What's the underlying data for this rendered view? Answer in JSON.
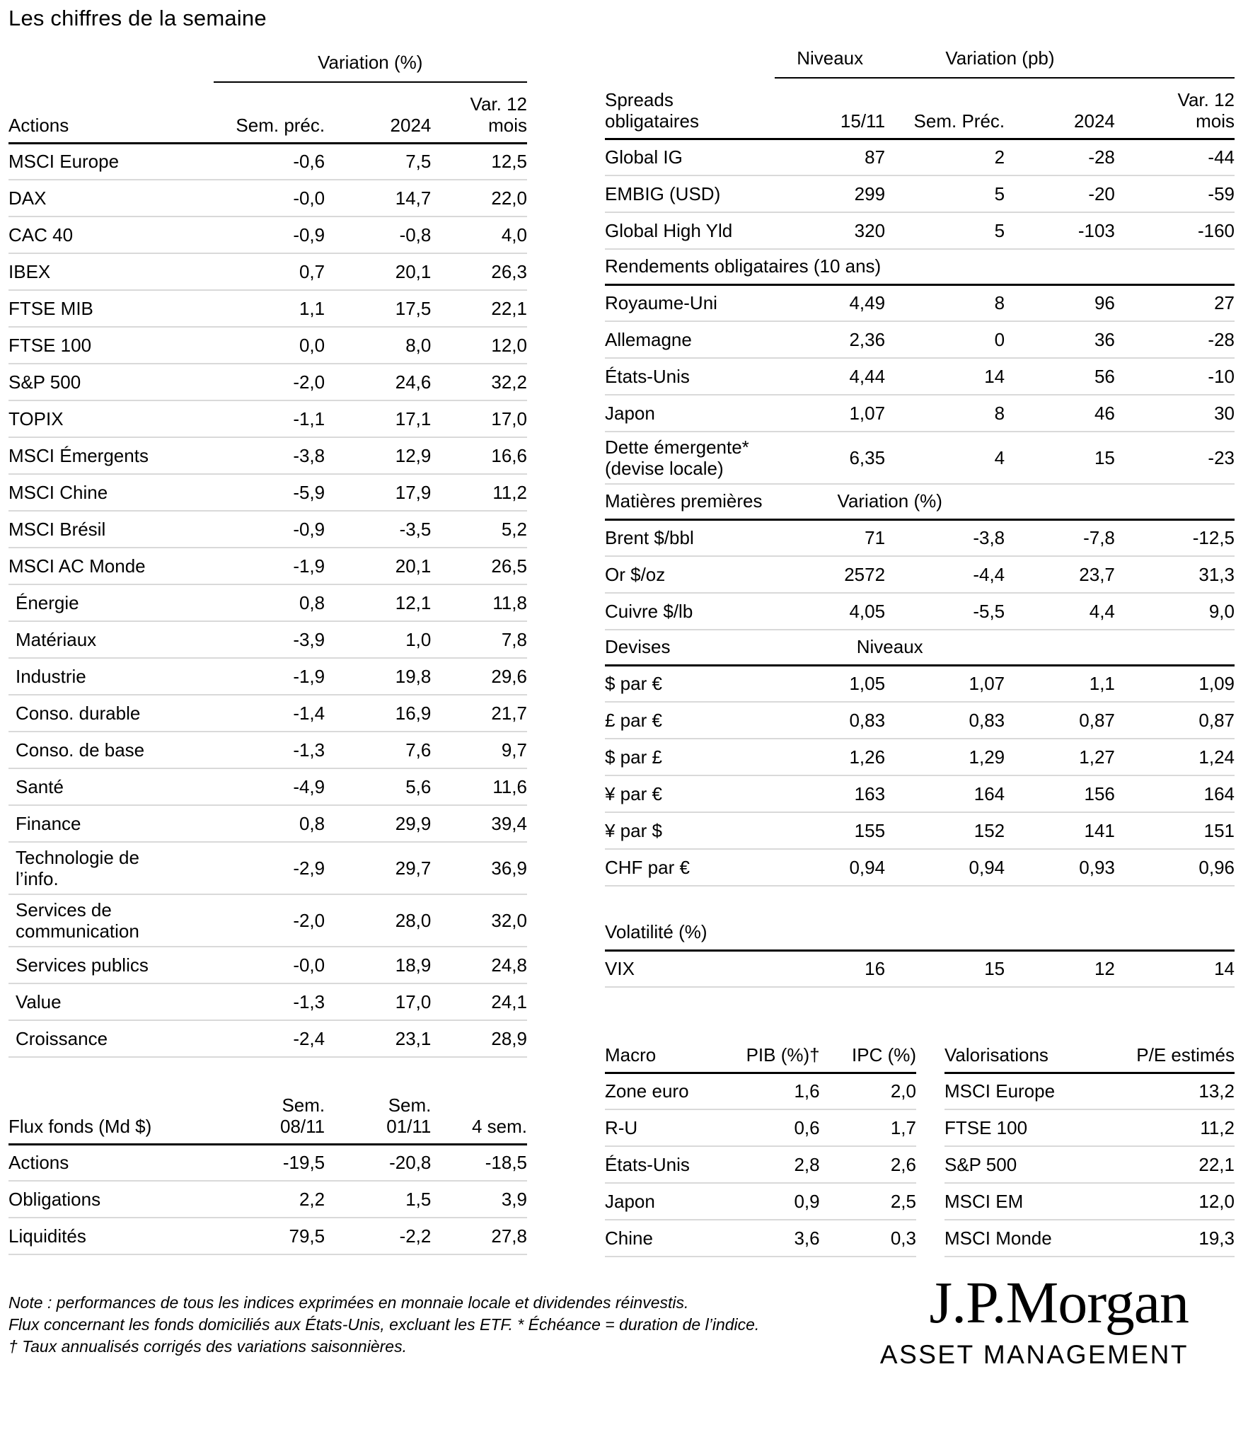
{
  "title": "Les chiffres de la semaine",
  "colors": {
    "text": "#000000",
    "rule_strong": "#000000",
    "rule_light": "#d9d9d9"
  },
  "actions": {
    "group_header": "Variation (%)",
    "col_headers": [
      "Actions",
      "Sem. préc.",
      "2024",
      "Var. 12\nmois"
    ],
    "rows": [
      {
        "label": "MSCI Europe",
        "values": [
          "-0,6",
          "7,5",
          "12,5"
        ]
      },
      {
        "label": "DAX",
        "values": [
          "-0,0",
          "14,7",
          "22,0"
        ]
      },
      {
        "label": "CAC 40",
        "values": [
          "-0,9",
          "-0,8",
          "4,0"
        ]
      },
      {
        "label": "IBEX",
        "values": [
          "0,7",
          "20,1",
          "26,3"
        ]
      },
      {
        "label": "FTSE MIB",
        "values": [
          "1,1",
          "17,5",
          "22,1"
        ]
      },
      {
        "label": "FTSE 100",
        "values": [
          "0,0",
          "8,0",
          "12,0"
        ]
      },
      {
        "label": "S&P 500",
        "values": [
          "-2,0",
          "24,6",
          "32,2"
        ]
      },
      {
        "label": "TOPIX",
        "values": [
          "-1,1",
          "17,1",
          "17,0"
        ]
      },
      {
        "label": "MSCI Émergents",
        "values": [
          "-3,8",
          "12,9",
          "16,6"
        ]
      },
      {
        "label": "MSCI Chine",
        "values": [
          "-5,9",
          "17,9",
          "11,2"
        ]
      },
      {
        "label": "MSCI Brésil",
        "values": [
          "-0,9",
          "-3,5",
          "5,2"
        ]
      },
      {
        "label": "MSCI AC Monde",
        "values": [
          "-1,9",
          "20,1",
          "26,5"
        ]
      },
      {
        "label": "Énergie",
        "indent": true,
        "values": [
          "0,8",
          "12,1",
          "11,8"
        ]
      },
      {
        "label": "Matériaux",
        "indent": true,
        "values": [
          "-3,9",
          "1,0",
          "7,8"
        ]
      },
      {
        "label": "Industrie",
        "indent": true,
        "values": [
          "-1,9",
          "19,8",
          "29,6"
        ]
      },
      {
        "label": "Conso. durable",
        "indent": true,
        "values": [
          "-1,4",
          "16,9",
          "21,7"
        ]
      },
      {
        "label": "Conso. de base",
        "indent": true,
        "values": [
          "-1,3",
          "7,6",
          "9,7"
        ]
      },
      {
        "label": "Santé",
        "indent": true,
        "values": [
          "-4,9",
          "5,6",
          "11,6"
        ]
      },
      {
        "label": "Finance",
        "indent": true,
        "values": [
          "0,8",
          "29,9",
          "39,4"
        ]
      },
      {
        "label": "Technologie de\nl’info.",
        "indent": true,
        "values": [
          "-2,9",
          "29,7",
          "36,9"
        ]
      },
      {
        "label": "Services de\ncommunication",
        "indent": true,
        "values": [
          "-2,0",
          "28,0",
          "32,0"
        ]
      },
      {
        "label": "Services publics",
        "indent": true,
        "values": [
          "-0,0",
          "18,9",
          "24,8"
        ]
      },
      {
        "label": "Value",
        "indent": true,
        "values": [
          "-1,3",
          "17,0",
          "24,1"
        ]
      },
      {
        "label": "Croissance",
        "indent": true,
        "values": [
          "-2,4",
          "23,1",
          "28,9"
        ]
      }
    ]
  },
  "flux": {
    "col_headers": [
      "Flux fonds (Md $)",
      "Sem.\n08/11",
      "Sem.\n01/11",
      "4 sem."
    ],
    "rows": [
      {
        "label": "Actions",
        "values": [
          "-19,5",
          "-20,8",
          "-18,5"
        ]
      },
      {
        "label": "Obligations",
        "values": [
          "2,2",
          "1,5",
          "3,9"
        ]
      },
      {
        "label": "Liquidités",
        "values": [
          "79,5",
          "-2,2",
          "27,8"
        ]
      }
    ]
  },
  "spreads": {
    "group_headers": [
      "Niveaux",
      "Variation (pb)"
    ],
    "col_headers": [
      "Spreads\nobligataires",
      "15/11",
      "Sem. Préc.",
      "2024",
      "Var. 12\nmois"
    ],
    "rows": [
      {
        "label": "Global IG",
        "values": [
          "87",
          "2",
          "-28",
          "-44"
        ]
      },
      {
        "label": "EMBIG (USD)",
        "values": [
          "299",
          "5",
          "-20",
          "-59"
        ]
      },
      {
        "label": "Global High Yld",
        "values": [
          "320",
          "5",
          "-103",
          "-160"
        ]
      }
    ]
  },
  "rendements": {
    "section_header": "Rendements obligataires (10 ans)",
    "rows": [
      {
        "label": "Royaume-Uni",
        "values": [
          "4,49",
          "8",
          "96",
          "27"
        ]
      },
      {
        "label": "Allemagne",
        "values": [
          "2,36",
          "0",
          "36",
          "-28"
        ]
      },
      {
        "label": "États-Unis",
        "values": [
          "4,44",
          "14",
          "56",
          "-10"
        ]
      },
      {
        "label": "Japon",
        "values": [
          "1,07",
          "8",
          "46",
          "30"
        ]
      },
      {
        "label": "Dette émergente*\n(devise locale)",
        "values": [
          "6,35",
          "4",
          "15",
          "-23"
        ]
      }
    ]
  },
  "matieres": {
    "section_header": "Matières premières",
    "group_header": "Variation (%)",
    "rows": [
      {
        "label": "Brent $/bbl",
        "values": [
          "71",
          "-3,8",
          "-7,8",
          "-12,5"
        ]
      },
      {
        "label": "Or $/oz",
        "values": [
          "2572",
          "-4,4",
          "23,7",
          "31,3"
        ]
      },
      {
        "label": "Cuivre $/lb",
        "values": [
          "4,05",
          "-5,5",
          "4,4",
          "9,0"
        ]
      }
    ]
  },
  "devises": {
    "section_header": "Devises",
    "group_header": "Niveaux",
    "rows": [
      {
        "label": "$ par €",
        "values": [
          "1,05",
          "1,07",
          "1,1",
          "1,09"
        ]
      },
      {
        "label": "£ par €",
        "values": [
          "0,83",
          "0,83",
          "0,87",
          "0,87"
        ]
      },
      {
        "label": "$ par £",
        "values": [
          "1,26",
          "1,29",
          "1,27",
          "1,24"
        ]
      },
      {
        "label": "¥ par €",
        "values": [
          "163",
          "164",
          "156",
          "164"
        ]
      },
      {
        "label": "¥ par $",
        "values": [
          "155",
          "152",
          "141",
          "151"
        ]
      },
      {
        "label": "CHF par €",
        "values": [
          "0,94",
          "0,94",
          "0,93",
          "0,96"
        ]
      }
    ]
  },
  "volatilite": {
    "section_header": "Volatilité (%)",
    "rows": [
      {
        "label": "VIX",
        "values": [
          "16",
          "15",
          "12",
          "14"
        ]
      }
    ]
  },
  "macro": {
    "col_headers": [
      "Macro",
      "PIB (%)†",
      "IPC (%)"
    ],
    "rows": [
      {
        "label": "Zone euro",
        "values": [
          "1,6",
          "2,0"
        ]
      },
      {
        "label": "R-U",
        "values": [
          "0,6",
          "1,7"
        ]
      },
      {
        "label": "États-Unis",
        "values": [
          "2,8",
          "2,6"
        ]
      },
      {
        "label": "Japon",
        "values": [
          "0,9",
          "2,5"
        ]
      },
      {
        "label": "Chine",
        "values": [
          "3,6",
          "0,3"
        ]
      }
    ]
  },
  "valorisations": {
    "col_headers": [
      "Valorisations",
      "P/E estimés"
    ],
    "rows": [
      {
        "label": "MSCI Europe",
        "values": [
          "13,2"
        ]
      },
      {
        "label": "FTSE 100",
        "values": [
          "11,2"
        ]
      },
      {
        "label": "S&P 500",
        "values": [
          "22,1"
        ]
      },
      {
        "label": "MSCI EM",
        "values": [
          "12,0"
        ]
      },
      {
        "label": "MSCI Monde",
        "values": [
          "19,3"
        ]
      }
    ]
  },
  "notes": [
    "Note : performances de tous les indices exprimées en monnaie locale et dividendes réinvestis.",
    "Flux concernant les fonds domiciliés aux États-Unis, excluant les ETF. * Échéance = duration de l’indice.",
    "† Taux annualisés corrigés des variations saisonnières."
  ],
  "logo": {
    "brand": "J.P.Morgan",
    "subtitle": "ASSET MANAGEMENT"
  }
}
